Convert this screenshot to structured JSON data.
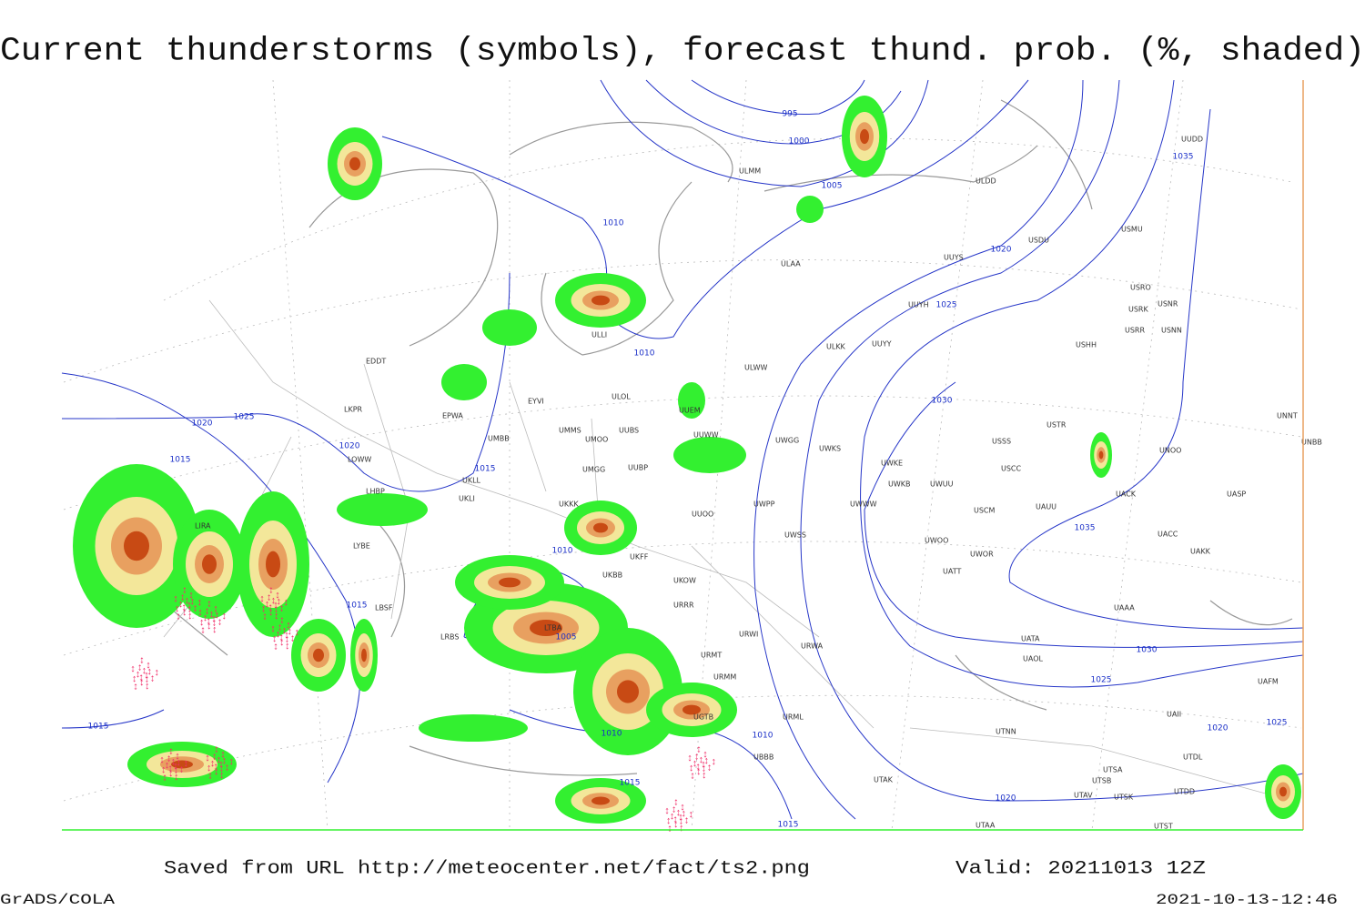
{
  "title": "Current thunderstorms (symbols), forecast thund. prob. (%, shaded)",
  "footer": {
    "source": "Saved from URL http://meteocenter.net/fact/ts2.png",
    "valid": "Valid: 20211013 12Z",
    "software": "GrADS/COLA",
    "timestamp": "2021-10-13-12:46"
  },
  "isobar_labels": [
    995,
    1000,
    1005,
    1010,
    1020,
    1025,
    1030,
    1035,
    1010,
    1025,
    1020,
    1020,
    1015,
    1015,
    1010,
    1015,
    1005,
    1010,
    1010,
    1015,
    1015,
    1020,
    1025,
    1030,
    1015,
    1035,
    1020,
    1025
  ],
  "stations": [
    "ULDD",
    "ULMM",
    "ULAA",
    "UUYS",
    "USDU",
    "USMU",
    "UUYH",
    "USRO",
    "USRK",
    "USNR",
    "USRR",
    "USNN",
    "USHH",
    "ULKK",
    "UUYY",
    "ULWW",
    "ULOL",
    "UMMS",
    "UMOO",
    "UUBS",
    "UUEM",
    "UUWW",
    "UWGG",
    "UWKS",
    "USSS",
    "USTR",
    "UNOO",
    "UNNT",
    "UNBB",
    "UWKE",
    "UWKB",
    "UWUU",
    "USCC",
    "UACK",
    "UASP",
    "USCM",
    "UAUU",
    "UWOO",
    "UWOR",
    "UATT",
    "UACC",
    "UAKK",
    "UATA",
    "UAOL",
    "UTNN",
    "UTSA",
    "UTAV",
    "UTDD",
    "EPWA",
    "UMBB",
    "UKLL",
    "UKLI",
    "UKKK",
    "UMGG",
    "UUOO",
    "UKOW",
    "URRR",
    "URWI",
    "URMT",
    "URMM",
    "URML",
    "UGTB",
    "UBBB",
    "UTAK",
    "LKPR",
    "LOWW",
    "LHBP",
    "LIRA",
    "LYBE",
    "LBSF",
    "LRBS",
    "LTBA",
    "EDDT",
    "EYVI",
    "ULLI",
    "UAAA",
    "UAII",
    "UTDL",
    "UAFM",
    "UTSB",
    "UTSK",
    "UTST",
    "UTAA",
    "UUDD",
    "UUBP",
    "UKBB",
    "UKFF",
    "UWWW",
    "UWPP",
    "UWSS",
    "URWA"
  ]
}
